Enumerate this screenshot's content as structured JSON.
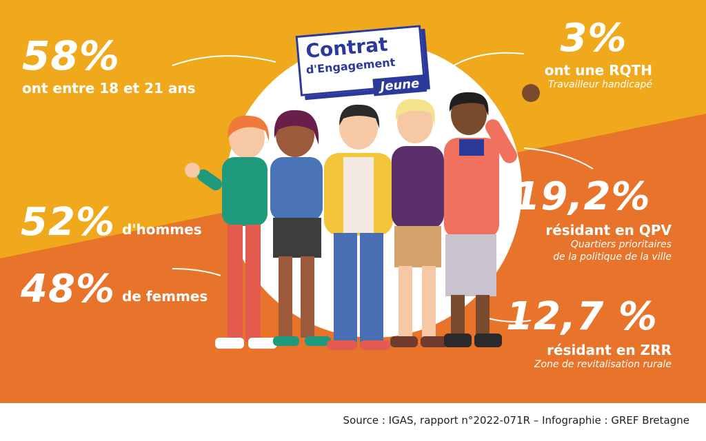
{
  "logo": {
    "line1": "Contrat",
    "line2": "d'Engagement",
    "line3": "Jeune"
  },
  "stats": {
    "age": {
      "value": "58%",
      "label": "ont entre 18 et 21 ans"
    },
    "hommes": {
      "value": "52%",
      "label": "d'hommes"
    },
    "femmes": {
      "value": "48%",
      "label": "de femmes"
    },
    "rqth": {
      "value": "3%",
      "label": "ont une RQTH",
      "sub": "Travailleur handicapé"
    },
    "qpv": {
      "value": "19,2%",
      "label": "résidant en QPV",
      "sub1": "Quartiers prioritaires",
      "sub2": "de la politique de la ville"
    },
    "zrr": {
      "value": "12,7 %",
      "label": "résidant en ZRR",
      "sub": "Zone de revitalisation rurale"
    }
  },
  "footer": {
    "source": "Source : IGAS, rapport n°2022-071R – Infographie : GREF Bretagne"
  },
  "colors": {
    "yellow": "#f0a91d",
    "orange": "#e8732a",
    "navy": "#2b3a9a"
  }
}
